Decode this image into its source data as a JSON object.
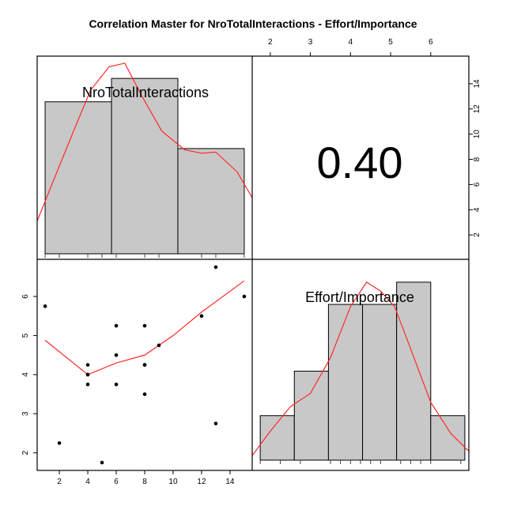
{
  "chart_data": {
    "type": "scatter",
    "title": "Correlation Master for NroTotalInteractions - Effort/Importance",
    "variables": [
      "NroTotalInteractions",
      "Effort/Importance"
    ],
    "correlation_label": "0.40",
    "correlation": 0.4,
    "top_axis_ticks": [
      "2",
      "3",
      "4",
      "5",
      "6"
    ],
    "right_axis_ticks": [
      "2",
      "4",
      "6",
      "8",
      "10",
      "12",
      "14"
    ],
    "bottom_axis_ticks": [
      "2",
      "4",
      "6",
      "8",
      "10",
      "12",
      "14"
    ],
    "left_axis_ticks": [
      "2",
      "3",
      "4",
      "5",
      "6"
    ],
    "xlim": [
      0.44,
      15.56
    ],
    "ylim": [
      1.55,
      6.95
    ],
    "scatter": {
      "x": [
        1,
        2,
        4,
        4,
        4,
        4,
        5,
        6,
        6,
        6,
        8,
        8,
        8,
        8,
        9,
        12,
        13,
        13,
        15
      ],
      "y": [
        5.75,
        2.25,
        4.25,
        4.0,
        4.0,
        3.75,
        1.75,
        5.25,
        4.5,
        3.75,
        5.25,
        4.25,
        4.25,
        3.5,
        4.75,
        5.5,
        6.75,
        2.75,
        6.0
      ],
      "smooth_line": {
        "x": [
          1,
          4,
          6,
          8,
          10,
          12,
          15
        ],
        "y": [
          4.88,
          4.0,
          4.3,
          4.5,
          5.0,
          5.6,
          6.4
        ]
      },
      "line_color": "#ff2a2a",
      "point_color": "#000000"
    },
    "hist_x": {
      "breaks": [
        1.0,
        5.667,
        10.333,
        15.0
      ],
      "counts": [
        13,
        15,
        9
      ],
      "rug": [
        1,
        2,
        4,
        5,
        6,
        8,
        9,
        12,
        13,
        15
      ],
      "density_x": [
        0.44,
        1.5,
        3.0,
        4.2,
        5.5,
        6.6,
        7.8,
        9.2,
        10.8,
        12.0,
        13.0,
        14.5,
        15.56
      ],
      "density_y": [
        2.8,
        6.0,
        10.5,
        14.0,
        16.0,
        16.3,
        13.5,
        10.5,
        8.9,
        8.6,
        8.7,
        7.0,
        4.8
      ],
      "ymax": 16.5
    },
    "hist_y": {
      "breaks": [
        1.75,
        2.6,
        3.45,
        4.3,
        5.15,
        6.0,
        6.85
      ],
      "counts": [
        2,
        4,
        7,
        7,
        8,
        2
      ],
      "rug": [
        1.75,
        2.25,
        2.75,
        3.5,
        3.75,
        4.0,
        4.25,
        4.5,
        4.75,
        5.25,
        5.5,
        5.75,
        6.0,
        6.75
      ],
      "density_x": [
        1.55,
        2.0,
        2.5,
        3.0,
        3.5,
        4.0,
        4.4,
        4.75,
        5.1,
        5.5,
        6.0,
        6.5,
        6.95
      ],
      "density_y": [
        0.2,
        1.3,
        2.4,
        3.0,
        4.6,
        6.9,
        8.0,
        7.6,
        6.9,
        5.0,
        2.6,
        1.2,
        0.4
      ],
      "ymax": 8.6
    },
    "hist_fill": "#c8c8c8",
    "grid": false
  }
}
